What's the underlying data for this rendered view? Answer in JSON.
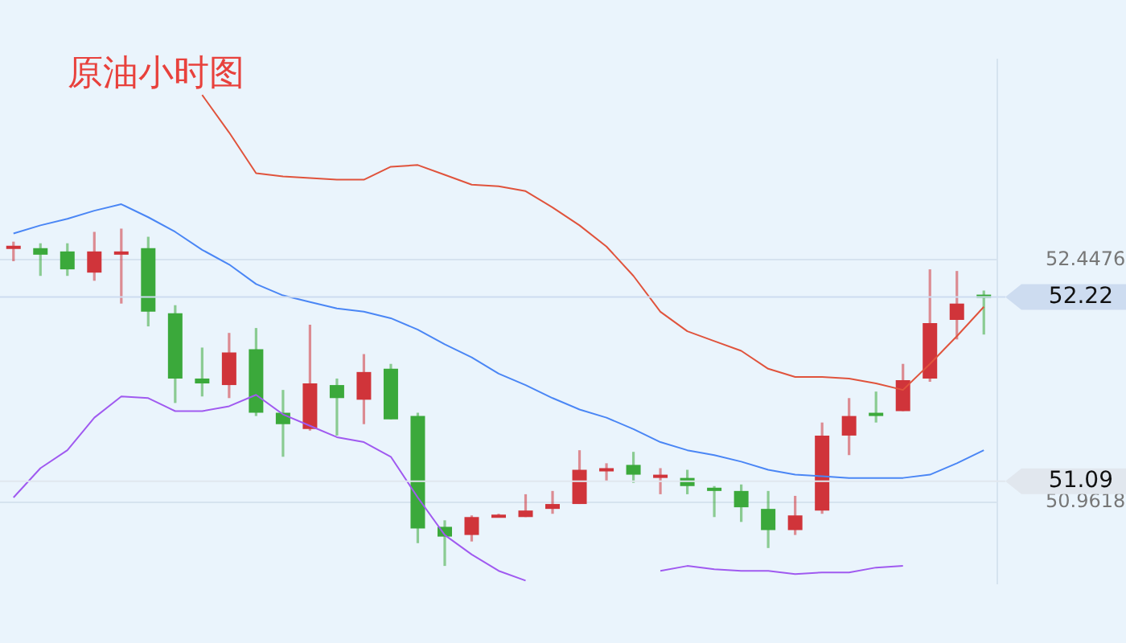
{
  "chart_data": {
    "type": "candlestick",
    "title": "原油小时图",
    "categories": [
      null,
      null,
      null,
      null,
      null,
      null,
      null,
      null,
      null,
      null,
      null,
      null,
      null,
      null,
      null,
      null,
      null,
      null,
      null,
      null,
      null,
      null,
      null,
      null,
      null,
      null,
      null,
      null,
      null,
      null,
      null,
      null,
      null,
      null,
      null,
      null,
      null
    ],
    "ohlc": [
      [
        52.52,
        52.56,
        52.44,
        52.53
      ],
      [
        52.52,
        52.55,
        52.35,
        52.48
      ],
      [
        52.5,
        52.55,
        52.35,
        52.39
      ],
      [
        52.37,
        52.62,
        52.32,
        52.5
      ],
      [
        52.48,
        52.64,
        52.18,
        52.5
      ],
      [
        52.52,
        52.59,
        52.04,
        52.13
      ],
      [
        52.12,
        52.17,
        51.57,
        51.72
      ],
      [
        51.72,
        51.91,
        51.61,
        51.69
      ],
      [
        51.68,
        52.0,
        51.6,
        51.88
      ],
      [
        51.9,
        52.03,
        51.49,
        51.51
      ],
      [
        51.51,
        51.65,
        51.24,
        51.44
      ],
      [
        51.41,
        52.05,
        51.4,
        51.69
      ],
      [
        51.68,
        51.72,
        51.37,
        51.6
      ],
      [
        51.59,
        51.87,
        51.44,
        51.76
      ],
      [
        51.78,
        51.81,
        51.47,
        51.47
      ],
      [
        51.49,
        51.51,
        50.71,
        50.8
      ],
      [
        50.81,
        50.85,
        50.57,
        50.75
      ],
      [
        50.76,
        50.88,
        50.72,
        50.87
      ],
      [
        50.87,
        50.89,
        50.87,
        50.88
      ],
      [
        50.87,
        51.01,
        50.87,
        50.91
      ],
      [
        50.92,
        51.03,
        50.89,
        50.95
      ],
      [
        50.95,
        51.28,
        50.95,
        51.16
      ],
      [
        51.15,
        51.2,
        51.09,
        51.17
      ],
      [
        51.19,
        51.27,
        51.08,
        51.13
      ],
      [
        51.11,
        51.17,
        51.01,
        51.13
      ],
      [
        51.11,
        51.16,
        51.01,
        51.06
      ],
      [
        51.05,
        51.06,
        50.87,
        51.03
      ],
      [
        51.03,
        51.07,
        50.84,
        50.93
      ],
      [
        50.92,
        51.03,
        50.68,
        50.79
      ],
      [
        50.79,
        51.0,
        50.76,
        50.88
      ],
      [
        50.91,
        51.45,
        50.89,
        51.37
      ],
      [
        51.37,
        51.6,
        51.25,
        51.49
      ],
      [
        51.51,
        51.64,
        51.45,
        51.49
      ],
      [
        51.52,
        51.81,
        51.52,
        51.71
      ],
      [
        51.72,
        52.39,
        51.7,
        52.06
      ],
      [
        52.08,
        52.38,
        51.96,
        52.18
      ],
      [
        52.23,
        52.26,
        51.99,
        52.22
      ]
    ],
    "colors": [
      "#d0343a",
      "#3ba93b",
      "#3ba93b",
      "#d0343a",
      "#d0343a",
      "#3ba93b",
      "#3ba93b",
      "#3ba93b",
      "#d0343a",
      "#3ba93b",
      "#3ba93b",
      "#d0343a",
      "#3ba93b",
      "#d0343a",
      "#3ba93b",
      "#3ba93b",
      "#3ba93b",
      "#d0343a",
      "#d0343a",
      "#d0343a",
      "#d0343a",
      "#d0343a",
      "#d0343a",
      "#3ba93b",
      "#d0343a",
      "#3ba93b",
      "#3ba93b",
      "#3ba93b",
      "#3ba93b",
      "#d0343a",
      "#d0343a",
      "#d0343a",
      "#3ba93b",
      "#d0343a",
      "#d0343a",
      "#d0343a",
      "#3ba93b"
    ],
    "series": [
      {
        "type": "line",
        "color": "#e0533c",
        "values": [
          null,
          null,
          null,
          null,
          null,
          null,
          null,
          53.46,
          53.23,
          52.98,
          52.96,
          52.95,
          52.94,
          52.94,
          53.02,
          53.03,
          52.97,
          52.91,
          52.9,
          52.87,
          52.77,
          52.66,
          52.53,
          52.35,
          52.13,
          52.01,
          51.95,
          51.89,
          51.78,
          51.73,
          51.73,
          51.72,
          51.69,
          51.65,
          51.81,
          51.98,
          52.16
        ]
      },
      {
        "type": "line",
        "color": "#4a86f5",
        "values": [
          52.61,
          52.66,
          52.7,
          52.75,
          52.79,
          52.71,
          52.62,
          52.51,
          52.42,
          52.3,
          52.23,
          52.19,
          52.15,
          52.13,
          52.09,
          52.02,
          51.93,
          51.85,
          51.75,
          51.68,
          51.6,
          51.53,
          51.48,
          51.41,
          51.33,
          51.28,
          51.25,
          51.21,
          51.16,
          51.13,
          51.12,
          51.11,
          51.11,
          51.11,
          51.13,
          51.2,
          51.28
        ]
      },
      {
        "type": "line",
        "color": "#a05af0",
        "values": [
          50.99,
          51.17,
          51.28,
          51.48,
          51.61,
          51.6,
          51.52,
          51.52,
          51.55,
          51.62,
          51.5,
          51.43,
          51.36,
          51.33,
          51.24,
          50.99,
          50.76,
          50.64,
          50.54,
          50.48,
          null,
          null,
          null,
          null,
          50.54,
          50.57,
          50.55,
          50.54,
          50.54,
          50.52,
          50.53,
          50.53,
          50.56,
          50.57,
          null,
          null,
          null
        ]
      }
    ],
    "ylim": [
      50.464,
      53.676
    ],
    "yticks": [
      52.4476,
      50.9618
    ],
    "grid": "y",
    "legend": false,
    "tick_labels": "y",
    "ref_lines": [
      {
        "axis": "y",
        "value": 52.22,
        "label": "52.22",
        "color": "#cddcf0"
      },
      {
        "axis": "y",
        "value": 51.09,
        "label": "51.09",
        "color": "#e1e7ee"
      }
    ]
  }
}
